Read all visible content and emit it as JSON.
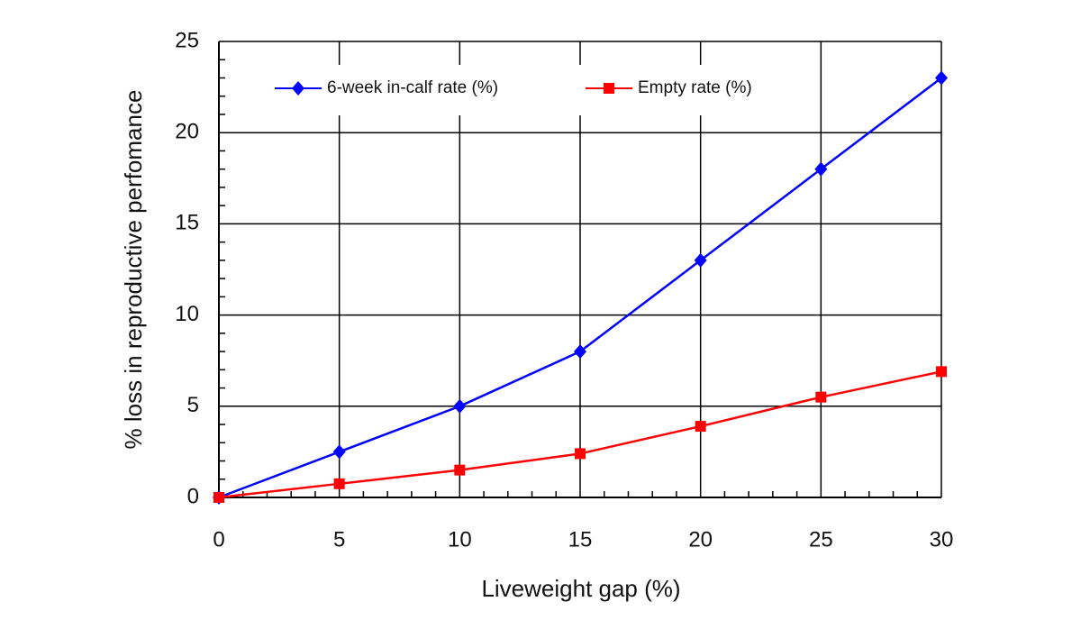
{
  "chart_data": {
    "type": "line",
    "x": [
      0,
      5,
      10,
      15,
      20,
      25,
      30
    ],
    "series": [
      {
        "name": "6-week in-calf rate (%)",
        "color": "#0000ff",
        "marker": "diamond",
        "values": [
          0,
          2.5,
          5,
          8,
          13,
          18,
          23
        ]
      },
      {
        "name": "Empty rate (%)",
        "color": "#ff0000",
        "marker": "square",
        "values": [
          0,
          0.75,
          1.5,
          2.4,
          3.9,
          5.5,
          6.9
        ]
      }
    ],
    "xlabel": "Liveweight gap (%)",
    "ylabel": "% loss in reproductive perfomance",
    "xlim": [
      0,
      30
    ],
    "xticks": [
      0,
      5,
      10,
      15,
      20,
      25,
      30
    ],
    "ylim": [
      0,
      25
    ],
    "yticks": [
      0,
      5,
      10,
      15,
      20,
      25
    ],
    "grid": true,
    "legend": "top"
  }
}
